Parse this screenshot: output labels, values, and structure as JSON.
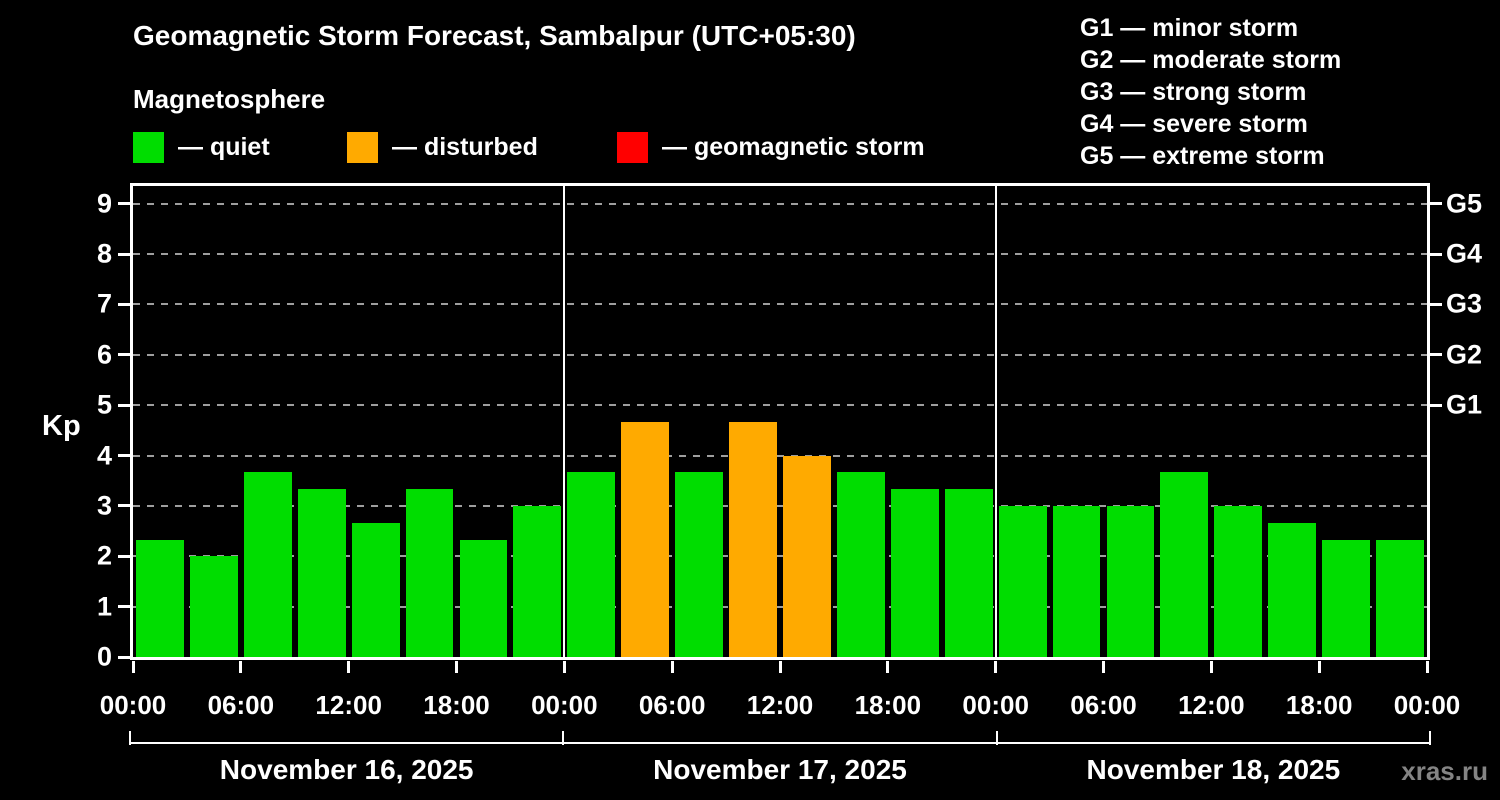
{
  "header": {
    "title": "Geomagnetic Storm Forecast, Sambalpur (UTC+05:30)",
    "subtitle": "Magnetosphere"
  },
  "legend": {
    "quiet": {
      "label": "— quiet",
      "color": "#00dd00"
    },
    "disturbed": {
      "label": "— disturbed",
      "color": "#ffaa00"
    },
    "storm": {
      "label": "— geomagnetic storm",
      "color": "#ff0000"
    }
  },
  "g_scale": [
    {
      "label": "G1 — minor storm"
    },
    {
      "label": "G2 — moderate storm"
    },
    {
      "label": "G3 — strong storm"
    },
    {
      "label": "G4 — severe storm"
    },
    {
      "label": "G5 — extreme storm"
    }
  ],
  "axes": {
    "y_label": "Kp",
    "y_ticks": [
      "0",
      "1",
      "2",
      "3",
      "4",
      "5",
      "6",
      "7",
      "8",
      "9"
    ],
    "right_ticks": [
      {
        "label": "G1",
        "kp": 5
      },
      {
        "label": "G2",
        "kp": 6
      },
      {
        "label": "G3",
        "kp": 7
      },
      {
        "label": "G4",
        "kp": 8
      },
      {
        "label": "G5",
        "kp": 9
      }
    ],
    "x_ticks": [
      {
        "hour": 0,
        "label": "00:00"
      },
      {
        "hour": 6,
        "label": "06:00"
      },
      {
        "hour": 12,
        "label": "12:00"
      },
      {
        "hour": 18,
        "label": "18:00"
      },
      {
        "hour": 24,
        "label": "00:00"
      },
      {
        "hour": 30,
        "label": "06:00"
      },
      {
        "hour": 36,
        "label": "12:00"
      },
      {
        "hour": 42,
        "label": "18:00"
      },
      {
        "hour": 48,
        "label": "00:00"
      },
      {
        "hour": 54,
        "label": "06:00"
      },
      {
        "hour": 60,
        "label": "12:00"
      },
      {
        "hour": 66,
        "label": "18:00"
      },
      {
        "hour": 72,
        "label": "00:00"
      }
    ]
  },
  "chart_data": {
    "type": "bar",
    "title": "Geomagnetic Storm Forecast, Sambalpur (UTC+05:30)",
    "ylabel": "Kp",
    "ylim": [
      0,
      9.35
    ],
    "grid": "horizontal-dashed",
    "legend_position": "top",
    "interval_hours": 3,
    "total_hours": 72,
    "day_separator_hours": [
      24,
      48
    ],
    "thresholds": {
      "disturbed_min": 4,
      "storm_min": 5
    },
    "days": [
      {
        "date": "November 16, 2025",
        "kp": [
          2.33,
          2.0,
          3.67,
          3.33,
          2.67,
          3.33,
          2.33,
          3.0
        ]
      },
      {
        "date": "November 17, 2025",
        "kp": [
          3.67,
          4.67,
          3.67,
          4.67,
          4.0,
          3.67,
          3.33,
          3.33
        ]
      },
      {
        "date": "November 18, 2025",
        "kp": [
          3.0,
          3.0,
          3.0,
          3.67,
          3.0,
          2.67,
          2.33,
          2.33
        ]
      }
    ]
  },
  "watermark": "xras.ru"
}
